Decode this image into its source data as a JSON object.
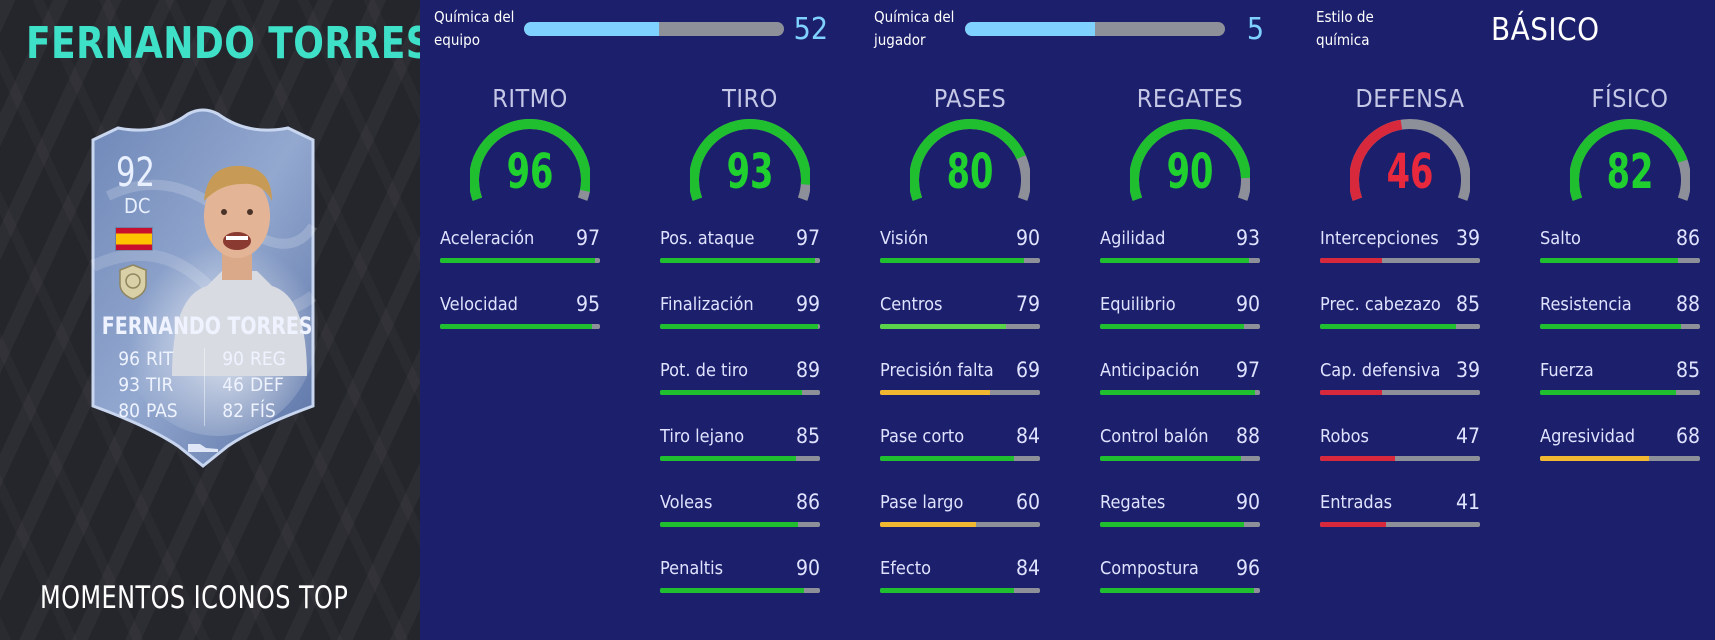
{
  "player": {
    "name": "FERNANDO TORRES",
    "card_type": "MOMENTOS ICONOS TOP",
    "card": {
      "rating": "92",
      "position": "DC",
      "name": "FERNANDO TORRES",
      "stats": [
        {
          "value": "96",
          "label": "RIT"
        },
        {
          "value": "93",
          "label": "TIR"
        },
        {
          "value": "80",
          "label": "PAS"
        },
        {
          "value": "90",
          "label": "REG"
        },
        {
          "value": "46",
          "label": "DEF"
        },
        {
          "value": "82",
          "label": "FÍS"
        }
      ]
    }
  },
  "chemistry": {
    "team": {
      "label_line1": "Química del",
      "label_line2": "equipo",
      "value": "52",
      "max": 100
    },
    "player": {
      "label_line1": "Química del",
      "label_line2": "jugador",
      "value": "5",
      "max": 10
    },
    "style": {
      "label_line1": "Estilo de",
      "label_line2": "química",
      "value": "BÁSICO"
    }
  },
  "colors": {
    "green": "#1fbf2f",
    "light_green": "#5ad24a",
    "yellow": "#f2b731",
    "red": "#d8283c",
    "gauge_track": "#8e9099",
    "chem_fill": "#7fd2ff"
  },
  "categories": [
    {
      "name": "RITMO",
      "value": 96,
      "color": "#1fbf2f",
      "value_color": "#1fd02f",
      "attributes": [
        {
          "name": "Aceleración",
          "value": 97,
          "color": "#1fbf2f"
        },
        {
          "name": "Velocidad",
          "value": 95,
          "color": "#1fbf2f"
        }
      ]
    },
    {
      "name": "TIRO",
      "value": 93,
      "color": "#1fbf2f",
      "value_color": "#1fd02f",
      "attributes": [
        {
          "name": "Pos. ataque",
          "value": 97,
          "color": "#1fbf2f"
        },
        {
          "name": "Finalización",
          "value": 99,
          "color": "#1fbf2f"
        },
        {
          "name": "Pot. de tiro",
          "value": 89,
          "color": "#1fbf2f"
        },
        {
          "name": "Tiro lejano",
          "value": 85,
          "color": "#1fbf2f"
        },
        {
          "name": "Voleas",
          "value": 86,
          "color": "#1fbf2f"
        },
        {
          "name": "Penaltis",
          "value": 90,
          "color": "#1fbf2f"
        }
      ]
    },
    {
      "name": "PASES",
      "value": 80,
      "color": "#1fbf2f",
      "value_color": "#1fd02f",
      "attributes": [
        {
          "name": "Visión",
          "value": 90,
          "color": "#1fbf2f"
        },
        {
          "name": "Centros",
          "value": 79,
          "color": "#5ad24a"
        },
        {
          "name": "Precisión falta",
          "value": 69,
          "color": "#f2b731"
        },
        {
          "name": "Pase corto",
          "value": 84,
          "color": "#1fbf2f"
        },
        {
          "name": "Pase largo",
          "value": 60,
          "color": "#f2b731"
        },
        {
          "name": "Efecto",
          "value": 84,
          "color": "#1fbf2f"
        }
      ]
    },
    {
      "name": "REGATES",
      "value": 90,
      "color": "#1fbf2f",
      "value_color": "#1fd02f",
      "attributes": [
        {
          "name": "Agilidad",
          "value": 93,
          "color": "#1fbf2f"
        },
        {
          "name": "Equilibrio",
          "value": 90,
          "color": "#1fbf2f"
        },
        {
          "name": "Anticipación",
          "value": 97,
          "color": "#1fbf2f"
        },
        {
          "name": "Control balón",
          "value": 88,
          "color": "#1fbf2f"
        },
        {
          "name": "Regates",
          "value": 90,
          "color": "#1fbf2f"
        },
        {
          "name": "Compostura",
          "value": 96,
          "color": "#1fbf2f"
        }
      ]
    },
    {
      "name": "DEFENSA",
      "value": 46,
      "color": "#d8283c",
      "value_color": "#e8283c",
      "attributes": [
        {
          "name": "Intercepciones",
          "value": 39,
          "color": "#d8283c"
        },
        {
          "name": "Prec. cabezazo",
          "value": 85,
          "color": "#1fbf2f"
        },
        {
          "name": "Cap. defensiva",
          "value": 39,
          "color": "#d8283c"
        },
        {
          "name": "Robos",
          "value": 47,
          "color": "#d8283c"
        },
        {
          "name": "Entradas",
          "value": 41,
          "color": "#d8283c"
        }
      ]
    },
    {
      "name": "FÍSICO",
      "value": 82,
      "color": "#1fbf2f",
      "value_color": "#1fd02f",
      "attributes": [
        {
          "name": "Salto",
          "value": 86,
          "color": "#1fbf2f"
        },
        {
          "name": "Resistencia",
          "value": 88,
          "color": "#1fbf2f"
        },
        {
          "name": "Fuerza",
          "value": 85,
          "color": "#1fbf2f"
        },
        {
          "name": "Agresividad",
          "value": 68,
          "color": "#f2b731"
        }
      ]
    }
  ]
}
